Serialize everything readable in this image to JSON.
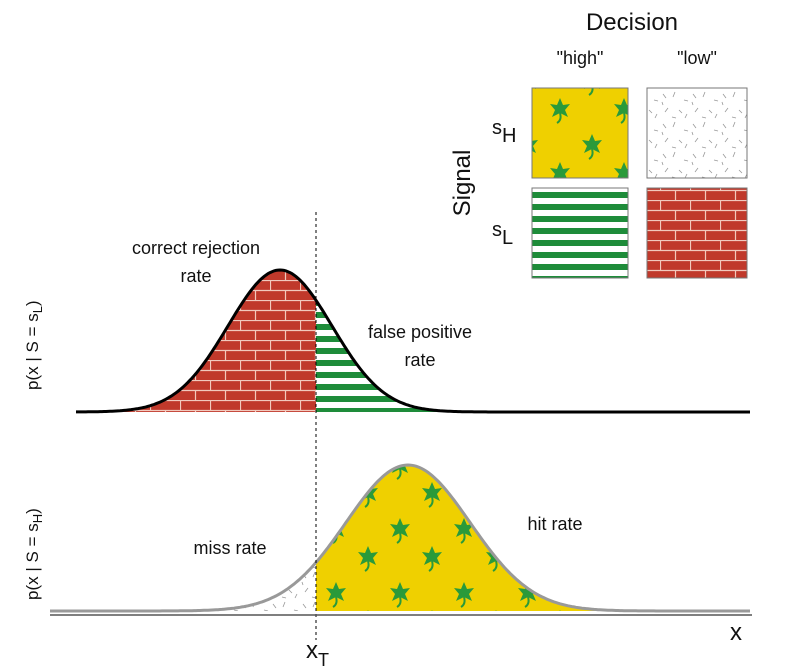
{
  "legend": {
    "title": "Decision",
    "columns": [
      "\"high\"",
      "\"low\""
    ],
    "row_axis": "Signal",
    "rows": [
      {
        "base": "s",
        "sub": "H"
      },
      {
        "base": "s",
        "sub": "L"
      }
    ]
  },
  "top_plot": {
    "ylabel": {
      "before": "p(x | S = s",
      "sub": "L",
      "after": ")"
    },
    "left_label": [
      "correct rejection",
      "rate"
    ],
    "right_label": [
      "false positive",
      "rate"
    ]
  },
  "bottom_plot": {
    "ylabel": {
      "before": "p(x | S = s",
      "sub": "H",
      "after": ")"
    },
    "left_label": "miss rate",
    "right_label": "hit rate"
  },
  "threshold": {
    "base": "x",
    "sub": "T"
  },
  "x_axis": "x"
}
